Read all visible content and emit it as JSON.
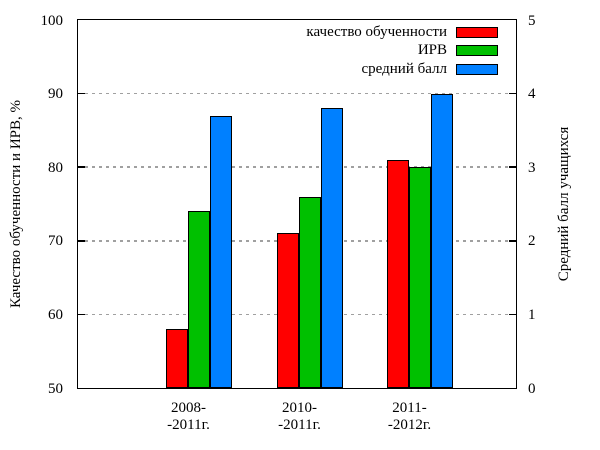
{
  "chart_data": {
    "type": "bar",
    "title": "",
    "categories": [
      "2008-\n-2011г.",
      "2010-\n-2011г.",
      "2011-\n-2012г."
    ],
    "series": [
      {
        "name": "качество обученности",
        "color": "#ff0000",
        "axis": "left",
        "values": [
          58,
          71,
          81
        ]
      },
      {
        "name": "ИРВ",
        "color": "#00c000",
        "axis": "left",
        "values": [
          74,
          76,
          80
        ]
      },
      {
        "name": "средний балл",
        "color": "#0080ff",
        "axis": "right",
        "values": [
          3.7,
          3.8,
          4.0
        ]
      }
    ],
    "left_axis": {
      "label": "Качество обученности и ИРВ, %",
      "min": 50,
      "max": 100,
      "ticks": [
        50,
        60,
        70,
        80,
        90,
        100
      ]
    },
    "right_axis": {
      "label": "Средний балл учащихся",
      "min": 0,
      "max": 5,
      "ticks": [
        0,
        1,
        2,
        3,
        4,
        5
      ]
    },
    "grid_values_left_axis": [
      60,
      70,
      80,
      90
    ],
    "legend_position": "top-right-inside",
    "grid_on": true,
    "colors": {
      "background": "#ffffff",
      "grid": "#a0a0a0",
      "axis": "#000000"
    }
  }
}
